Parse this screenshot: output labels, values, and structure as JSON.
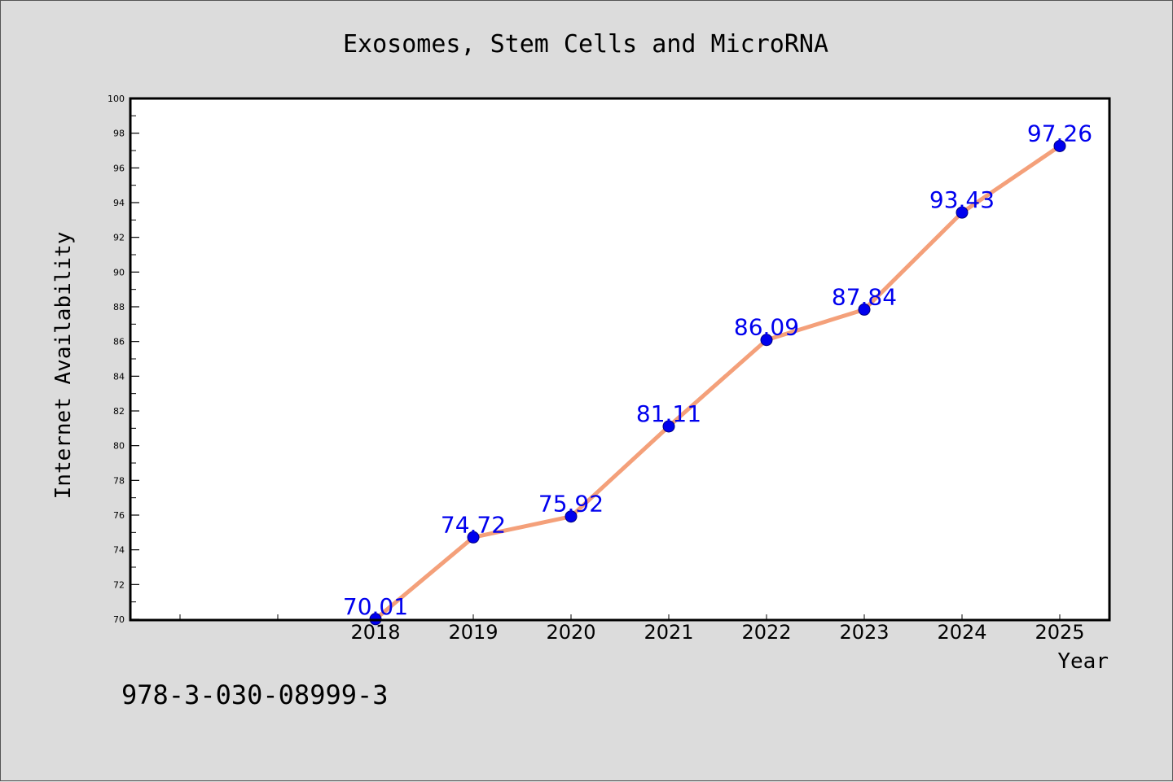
{
  "chart_data": {
    "type": "line",
    "title": "Exosomes, Stem Cells and MicroRNA",
    "xlabel": "Year",
    "ylabel": "Internet Availability",
    "x": [
      "2018",
      "2019",
      "2020",
      "2021",
      "2022",
      "2023",
      "2024",
      "2025"
    ],
    "series": [
      {
        "values": [
          70.01,
          74.72,
          75.92,
          81.11,
          86.09,
          87.84,
          93.43,
          97.26
        ],
        "data_labels": [
          "70.01",
          "74.72",
          "75.92",
          "81.11",
          "86.09",
          "87.84",
          "93.43",
          "97.26"
        ],
        "line_color": "#f4a07a",
        "marker_color": "#0000ee",
        "label_color": "#0000ee"
      }
    ],
    "xlim": [
      2015.5,
      2025.5
    ],
    "ylim": [
      70,
      100
    ],
    "ytick_labels": [
      "70",
      "72",
      "74",
      "76",
      "78",
      "80",
      "82",
      "84",
      "86",
      "88",
      "90",
      "92",
      "94",
      "96",
      "98",
      "100"
    ],
    "grid": false,
    "legend": "none"
  },
  "footer": {
    "isbn": "978-3-030-08999-3"
  }
}
